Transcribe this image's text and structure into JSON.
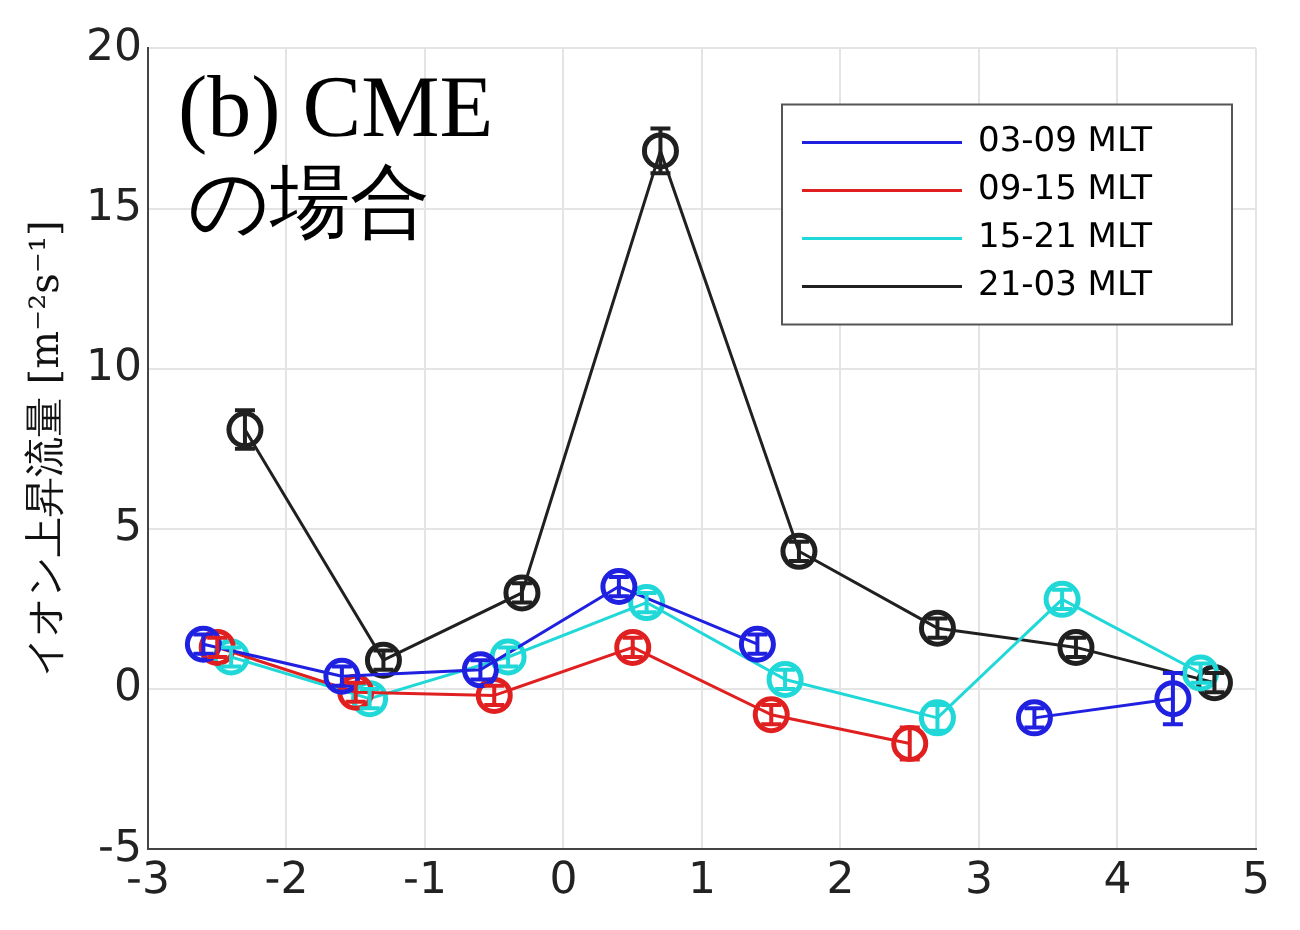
{
  "chart_data": {
    "type": "line",
    "ylabel": "イオン上昇流量 [m⁻²s⁻¹]",
    "annotations": [
      "(b) CME",
      "の場合"
    ],
    "xlim": [
      -3,
      5
    ],
    "xticks": [
      -3,
      -2,
      -1,
      0,
      1,
      2,
      3,
      4,
      5
    ],
    "ylim": [
      -5,
      20
    ],
    "yticks": [
      -5,
      0,
      5,
      10,
      15,
      20
    ],
    "grid": true,
    "legend": "top right",
    "marker": "circle",
    "line_style": "solid",
    "series": [
      {
        "name": "03-09 MLT",
        "color": "#2020e0",
        "x": [
          -2.6,
          -1.6,
          -0.6,
          0.4,
          1.4,
          2.4,
          3.4,
          4.4
        ],
        "values": [
          1.4,
          0.4,
          0.6,
          3.2,
          1.4,
          null,
          -0.9,
          -0.3
        ],
        "errors": [
          0.3,
          0.3,
          0.3,
          0.3,
          0.3,
          null,
          0.3,
          0.8
        ]
      },
      {
        "name": "09-15 MLT",
        "color": "#e02020",
        "x": [
          -2.5,
          -1.5,
          -0.5,
          0.5,
          1.5,
          2.5
        ],
        "values": [
          1.3,
          -0.1,
          -0.2,
          1.3,
          -0.8,
          -1.7
        ],
        "errors": [
          0.3,
          0.3,
          0.3,
          0.3,
          0.3,
          0.5
        ]
      },
      {
        "name": "15-21 MLT",
        "color": "#20d8d8",
        "x": [
          -2.4,
          -1.4,
          -0.4,
          0.6,
          1.6,
          2.7,
          3.6,
          4.6
        ],
        "values": [
          1.0,
          -0.3,
          1.0,
          2.7,
          0.3,
          -0.9,
          2.8,
          0.5
        ],
        "errors": [
          0.3,
          0.3,
          0.3,
          0.3,
          0.3,
          0.4,
          0.3,
          0.3
        ]
      },
      {
        "name": "21-03 MLT",
        "color": "#202020",
        "x": [
          -2.3,
          -1.3,
          -0.3,
          0.7,
          1.7,
          2.7,
          3.7,
          4.7
        ],
        "values": [
          8.1,
          0.9,
          3.0,
          16.8,
          4.3,
          1.9,
          1.3,
          0.2
        ],
        "errors": [
          0.6,
          0.3,
          0.3,
          0.7,
          0.3,
          0.3,
          0.3,
          0.3
        ]
      }
    ]
  }
}
